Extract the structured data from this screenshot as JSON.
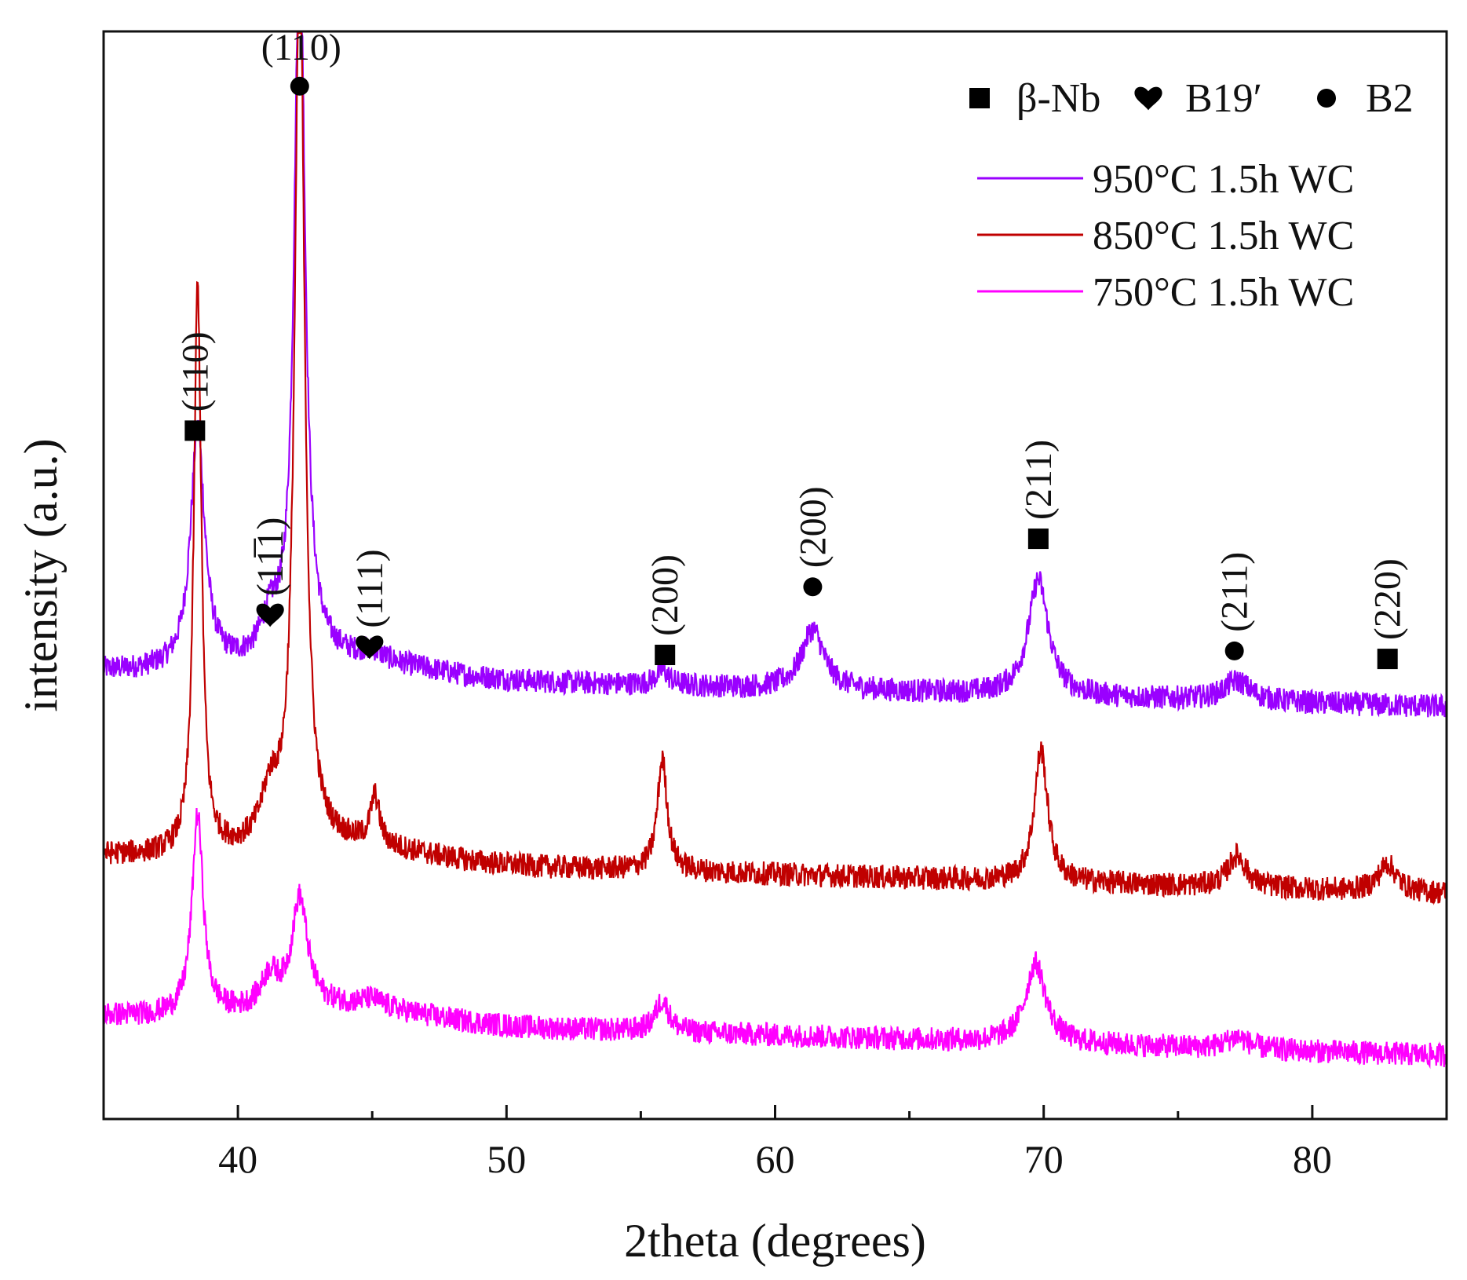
{
  "chart_data": {
    "type": "line",
    "title": "",
    "xlabel": "2theta (degrees)",
    "ylabel": "intensity (a.u.)",
    "xlim": [
      35,
      85
    ],
    "ylim": [
      0,
      1.0
    ],
    "xticks": [
      40,
      50,
      60,
      70,
      80
    ],
    "xtick_labels": [
      "40",
      "50",
      "60",
      "70",
      "80"
    ],
    "grid": false,
    "phase_legend": [
      {
        "marker": "square",
        "label": "β-Nb"
      },
      {
        "marker": "heart",
        "label": "B19′"
      },
      {
        "marker": "circle",
        "label": "B2"
      }
    ],
    "series": [
      {
        "name": "950°C 1.5h  WC",
        "color": "#9a00ff",
        "baseline_start": 0.53,
        "baseline_end": 0.485,
        "peaks": [
          {
            "x": 38.5,
            "h": 0.3,
            "w": 0.32
          },
          {
            "x": 41.2,
            "h": 0.045,
            "w": 0.4
          },
          {
            "x": 42.3,
            "h": 0.92,
            "w": 0.24
          },
          {
            "x": 45.0,
            "h": 0.01,
            "w": 0.5
          },
          {
            "x": 55.8,
            "h": 0.018,
            "w": 0.3
          },
          {
            "x": 61.4,
            "h": 0.075,
            "w": 0.5
          },
          {
            "x": 69.8,
            "h": 0.145,
            "w": 0.45
          },
          {
            "x": 77.2,
            "h": 0.025,
            "w": 0.6
          }
        ]
      },
      {
        "name": "850°C 1.5h  WC",
        "color": "#c00000",
        "baseline_start": 0.3,
        "baseline_end": 0.252,
        "peaks": [
          {
            "x": 38.5,
            "h": 0.71,
            "w": 0.17
          },
          {
            "x": 41.2,
            "h": 0.06,
            "w": 0.4
          },
          {
            "x": 42.3,
            "h": 1.12,
            "w": 0.22
          },
          {
            "x": 45.1,
            "h": 0.06,
            "w": 0.2
          },
          {
            "x": 55.8,
            "h": 0.14,
            "w": 0.22
          },
          {
            "x": 69.9,
            "h": 0.165,
            "w": 0.3
          },
          {
            "x": 77.2,
            "h": 0.04,
            "w": 0.4
          },
          {
            "x": 82.8,
            "h": 0.035,
            "w": 0.4
          }
        ]
      },
      {
        "name": "750°C 1.5h  WC",
        "color": "#ff00ff",
        "baseline_start": 0.1,
        "baseline_end": 0.05,
        "peaks": [
          {
            "x": 38.5,
            "h": 0.25,
            "w": 0.25
          },
          {
            "x": 41.2,
            "h": 0.04,
            "w": 0.4
          },
          {
            "x": 42.3,
            "h": 0.135,
            "w": 0.35
          },
          {
            "x": 45.0,
            "h": 0.01,
            "w": 0.5
          },
          {
            "x": 55.8,
            "h": 0.04,
            "w": 0.3
          },
          {
            "x": 69.7,
            "h": 0.1,
            "w": 0.45
          },
          {
            "x": 77.2,
            "h": 0.015,
            "w": 0.5
          }
        ]
      }
    ],
    "annotations": [
      {
        "text": "(110)",
        "marker": "square",
        "x": 38.4,
        "y": 0.83,
        "rotate": true
      },
      {
        "text": "(110)",
        "marker": "circle",
        "x": 42.3,
        "y": 1.26,
        "rotate": false
      },
      {
        "text": "(11̅1)",
        "marker": "heart",
        "x": 41.2,
        "y": 0.6,
        "rotate": true
      },
      {
        "text": "(111)",
        "marker": "heart",
        "x": 44.9,
        "y": 0.56,
        "rotate": true
      },
      {
        "text": "(200)",
        "marker": "square",
        "x": 55.9,
        "y": 0.55,
        "rotate": true
      },
      {
        "text": "(200)",
        "marker": "circle",
        "x": 61.4,
        "y": 0.635,
        "rotate": true
      },
      {
        "text": "(211)",
        "marker": "square",
        "x": 69.8,
        "y": 0.695,
        "rotate": true
      },
      {
        "text": "(211)",
        "marker": "circle",
        "x": 77.1,
        "y": 0.555,
        "rotate": true
      },
      {
        "text": "(220)",
        "marker": "square",
        "x": 82.8,
        "y": 0.545,
        "rotate": true
      }
    ]
  }
}
